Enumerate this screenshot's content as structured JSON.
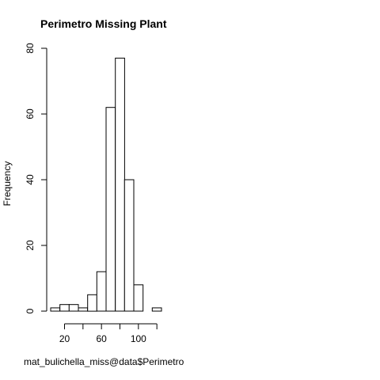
{
  "chart_data": {
    "type": "bar",
    "title": "Perimetro Missing Plant",
    "xlabel": "mat_bulichella_miss@data$Perimetro",
    "ylabel": "Frequency",
    "bin_edges": [
      5,
      15,
      25,
      35,
      45,
      55,
      65,
      75,
      85,
      95,
      105,
      115,
      125
    ],
    "values": [
      1,
      2,
      2,
      1,
      5,
      12,
      62,
      77,
      40,
      8,
      0,
      1
    ],
    "xlim": [
      5,
      125
    ],
    "ylim": [
      0,
      80
    ],
    "x_ticks": [
      20,
      60,
      100
    ],
    "x_ticks_minor": [
      40,
      80,
      120
    ],
    "y_ticks": [
      0,
      20,
      40,
      60,
      80
    ],
    "grid": false,
    "legend": "none",
    "bar_fill": "#ffffff",
    "bar_stroke": "#000000"
  }
}
